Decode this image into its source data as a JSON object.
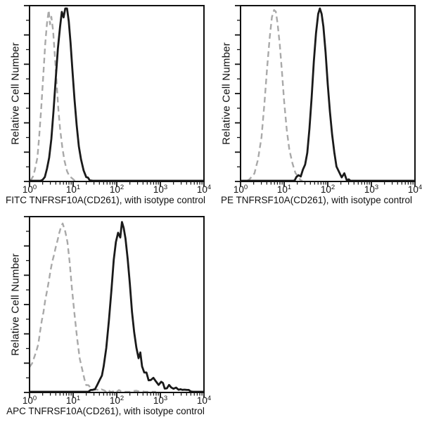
{
  "figure": {
    "background": "#ffffff",
    "text_color": "#111111",
    "axis_color": "#111111"
  },
  "chart_data": [
    {
      "type": "line",
      "subtype": "flow-cytometry-histogram-overlay",
      "title": "",
      "xlabel": "FITC TNFRSF10A(CD261), with isotype control",
      "ylabel": "Relative Cell Number",
      "x_scale": "log10",
      "x_range": [
        1,
        10000
      ],
      "x_tick_exponents": [
        0,
        1,
        2,
        3,
        4
      ],
      "y_ticks": "unlabeled",
      "grid": false,
      "legend": "none",
      "series": [
        {
          "name": "isotype control",
          "color": "#a9a9a9",
          "line": "dashed",
          "width": 2.4,
          "noise": 0.006,
          "peak_x": 2.8,
          "peak_y": 0.97,
          "points": [
            [
              0.02,
              0
            ],
            [
              0.08,
              0.03
            ],
            [
              0.12,
              0.06
            ],
            [
              0.18,
              0.14
            ],
            [
              0.22,
              0.25
            ],
            [
              0.27,
              0.42
            ],
            [
              0.32,
              0.62
            ],
            [
              0.36,
              0.78
            ],
            [
              0.4,
              0.9
            ],
            [
              0.44,
              0.97
            ],
            [
              0.47,
              0.89
            ],
            [
              0.5,
              0.94
            ],
            [
              0.54,
              0.86
            ],
            [
              0.58,
              0.72
            ],
            [
              0.62,
              0.56
            ],
            [
              0.66,
              0.42
            ],
            [
              0.7,
              0.3
            ],
            [
              0.75,
              0.2
            ],
            [
              0.8,
              0.12
            ],
            [
              0.86,
              0.06
            ],
            [
              0.92,
              0.03
            ],
            [
              1.0,
              0.01
            ],
            [
              1.08,
              0
            ]
          ]
        },
        {
          "name": "FITC TNFRSF10A(CD261)",
          "color": "#1a1a1a",
          "line": "solid",
          "width": 2.8,
          "noise": 0.006,
          "peak_x": 7,
          "peak_y": 0.99,
          "points": [
            [
              0,
              0
            ],
            [
              0.25,
              0
            ],
            [
              0.3,
              0.01
            ],
            [
              0.35,
              0.03
            ],
            [
              0.4,
              0.07
            ],
            [
              0.45,
              0.13
            ],
            [
              0.5,
              0.24
            ],
            [
              0.55,
              0.4
            ],
            [
              0.6,
              0.58
            ],
            [
              0.65,
              0.75
            ],
            [
              0.7,
              0.88
            ],
            [
              0.74,
              0.96
            ],
            [
              0.78,
              0.93
            ],
            [
              0.82,
              0.98
            ],
            [
              0.86,
              0.99
            ],
            [
              0.9,
              0.91
            ],
            [
              0.94,
              0.79
            ],
            [
              0.98,
              0.64
            ],
            [
              1.03,
              0.47
            ],
            [
              1.08,
              0.32
            ],
            [
              1.13,
              0.2
            ],
            [
              1.18,
              0.12
            ],
            [
              1.24,
              0.06
            ],
            [
              1.3,
              0.03
            ],
            [
              1.38,
              0.01
            ],
            [
              1.5,
              0
            ],
            [
              4,
              0
            ]
          ]
        }
      ]
    },
    {
      "type": "line",
      "subtype": "flow-cytometry-histogram-overlay",
      "title": "",
      "xlabel": "PE TNFRSF10A(CD261), with isotype control",
      "ylabel": "Relative Cell Number",
      "x_scale": "log10",
      "x_range": [
        1,
        10000
      ],
      "x_tick_exponents": [
        0,
        1,
        2,
        3,
        4
      ],
      "y_ticks": "unlabeled",
      "grid": false,
      "legend": "none",
      "series": [
        {
          "name": "isotype control",
          "color": "#a9a9a9",
          "line": "dashed",
          "width": 2.4,
          "noise": 0.006,
          "peak_x": 6.3,
          "peak_y": 0.98,
          "points": [
            [
              0.15,
              0
            ],
            [
              0.25,
              0.02
            ],
            [
              0.32,
              0.05
            ],
            [
              0.4,
              0.12
            ],
            [
              0.48,
              0.25
            ],
            [
              0.55,
              0.45
            ],
            [
              0.61,
              0.65
            ],
            [
              0.67,
              0.82
            ],
            [
              0.72,
              0.93
            ],
            [
              0.77,
              0.98
            ],
            [
              0.81,
              0.96
            ],
            [
              0.85,
              0.9
            ],
            [
              0.9,
              0.78
            ],
            [
              0.95,
              0.62
            ],
            [
              1.0,
              0.45
            ],
            [
              1.06,
              0.3
            ],
            [
              1.12,
              0.18
            ],
            [
              1.19,
              0.1
            ],
            [
              1.26,
              0.05
            ],
            [
              1.33,
              0.02
            ],
            [
              1.42,
              0
            ]
          ]
        },
        {
          "name": "PE TNFRSF10A(CD261)",
          "color": "#1a1a1a",
          "line": "solid",
          "width": 2.8,
          "noise": 0.008,
          "peak_x": 66,
          "peak_y": 0.99,
          "points": [
            [
              0,
              0
            ],
            [
              1.2,
              0
            ],
            [
              1.28,
              0.02
            ],
            [
              1.33,
              0.04
            ],
            [
              1.38,
              0.03
            ],
            [
              1.43,
              0.06
            ],
            [
              1.48,
              0.1
            ],
            [
              1.53,
              0.17
            ],
            [
              1.58,
              0.3
            ],
            [
              1.63,
              0.48
            ],
            [
              1.68,
              0.68
            ],
            [
              1.73,
              0.85
            ],
            [
              1.78,
              0.95
            ],
            [
              1.82,
              0.99
            ],
            [
              1.86,
              0.96
            ],
            [
              1.9,
              0.88
            ],
            [
              1.95,
              0.74
            ],
            [
              2.0,
              0.56
            ],
            [
              2.05,
              0.4
            ],
            [
              2.1,
              0.26
            ],
            [
              2.15,
              0.16
            ],
            [
              2.2,
              0.09
            ],
            [
              2.26,
              0.05
            ],
            [
              2.32,
              0.02
            ],
            [
              2.38,
              0.04
            ],
            [
              2.44,
              0.01
            ],
            [
              2.52,
              0
            ],
            [
              4,
              0
            ]
          ]
        }
      ]
    },
    {
      "type": "line",
      "subtype": "flow-cytometry-histogram-overlay",
      "title": "",
      "xlabel": "APC TNFRSF10A(CD261), with isotype control",
      "ylabel": "Relative Cell Number",
      "x_scale": "log10",
      "x_range": [
        1,
        10000
      ],
      "x_tick_exponents": [
        0,
        1,
        2,
        3,
        4
      ],
      "y_ticks": "unlabeled",
      "grid": false,
      "legend": "none",
      "series": [
        {
          "name": "isotype control",
          "color": "#a9a9a9",
          "line": "dashed",
          "width": 2.4,
          "noise": 0.01,
          "peak_x": 5.8,
          "peak_y": 0.96,
          "points": [
            [
              0,
              0.14
            ],
            [
              0.06,
              0.16
            ],
            [
              0.12,
              0.2
            ],
            [
              0.2,
              0.28
            ],
            [
              0.28,
              0.4
            ],
            [
              0.36,
              0.52
            ],
            [
              0.44,
              0.64
            ],
            [
              0.52,
              0.74
            ],
            [
              0.6,
              0.82
            ],
            [
              0.68,
              0.9
            ],
            [
              0.76,
              0.96
            ],
            [
              0.82,
              0.92
            ],
            [
              0.87,
              0.85
            ],
            [
              0.92,
              0.74
            ],
            [
              0.97,
              0.6
            ],
            [
              1.03,
              0.45
            ],
            [
              1.09,
              0.31
            ],
            [
              1.15,
              0.2
            ],
            [
              1.22,
              0.11
            ],
            [
              1.3,
              0.05
            ],
            [
              1.4,
              0.02
            ],
            [
              1.55,
              0.01
            ],
            [
              1.8,
              0.008
            ],
            [
              2.2,
              0.007
            ],
            [
              2.6,
              0.006
            ],
            [
              2.9,
              0
            ]
          ]
        },
        {
          "name": "APC TNFRSF10A(CD261)",
          "color": "#1a1a1a",
          "line": "solid",
          "width": 2.8,
          "noise": 0.015,
          "peak_x": 135,
          "peak_y": 0.98,
          "points": [
            [
              0,
              0
            ],
            [
              1.35,
              0
            ],
            [
              1.45,
              0.01
            ],
            [
              1.55,
              0.03
            ],
            [
              1.62,
              0.07
            ],
            [
              1.7,
              0.14
            ],
            [
              1.76,
              0.26
            ],
            [
              1.82,
              0.42
            ],
            [
              1.88,
              0.6
            ],
            [
              1.93,
              0.74
            ],
            [
              1.98,
              0.85
            ],
            [
              2.03,
              0.92
            ],
            [
              2.08,
              0.89
            ],
            [
              2.12,
              0.97
            ],
            [
              2.16,
              0.93
            ],
            [
              2.2,
              0.88
            ],
            [
              2.25,
              0.76
            ],
            [
              2.3,
              0.62
            ],
            [
              2.35,
              0.47
            ],
            [
              2.4,
              0.34
            ],
            [
              2.45,
              0.25
            ],
            [
              2.5,
              0.19
            ],
            [
              2.54,
              0.24
            ],
            [
              2.58,
              0.14
            ],
            [
              2.63,
              0.1
            ],
            [
              2.68,
              0.12
            ],
            [
              2.73,
              0.08
            ],
            [
              2.78,
              0.06
            ],
            [
              2.84,
              0.08
            ],
            [
              2.9,
              0.05
            ],
            [
              2.96,
              0.04
            ],
            [
              3.02,
              0.06
            ],
            [
              3.1,
              0.03
            ],
            [
              3.2,
              0.03
            ],
            [
              3.3,
              0.02
            ],
            [
              3.42,
              0.02
            ],
            [
              3.55,
              0.01
            ],
            [
              3.7,
              0.005
            ],
            [
              3.85,
              0
            ],
            [
              4,
              0
            ]
          ]
        }
      ]
    }
  ]
}
